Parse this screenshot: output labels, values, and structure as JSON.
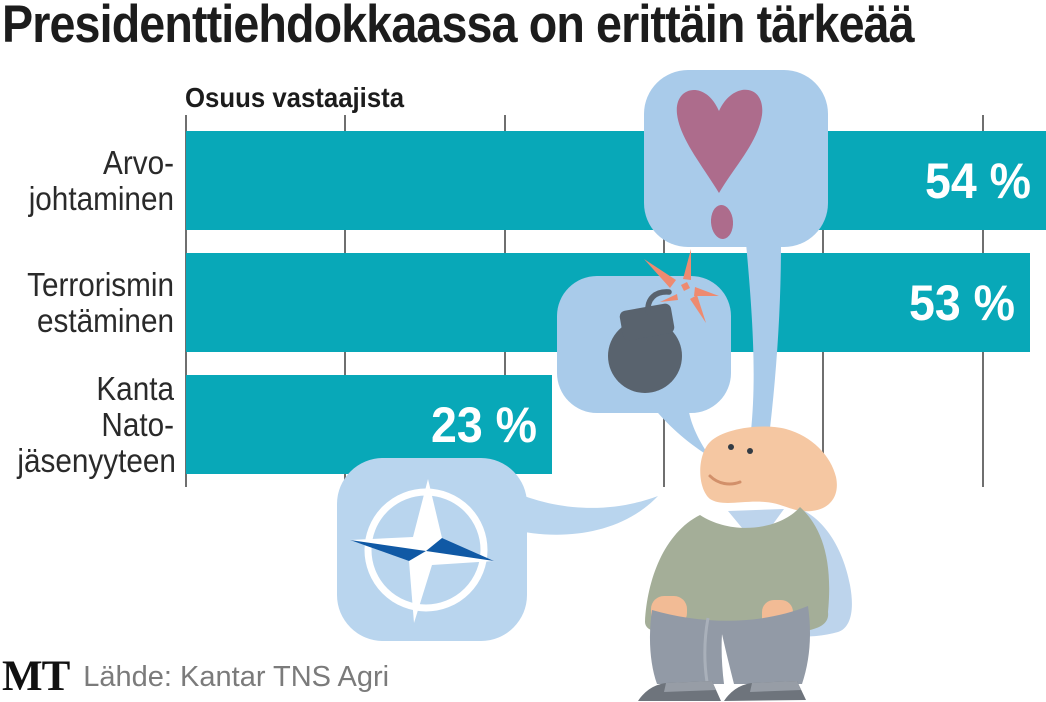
{
  "title": "Presidenttiehdokkaassa on erittäin tärkeää",
  "chart_data": {
    "type": "bar",
    "orientation": "horizontal",
    "title": "Presidenttiehdokkaassa on erittäin tärkeää",
    "axis_label": "Osuus vastaajista",
    "unit": "%",
    "xlim": [
      0,
      60
    ],
    "gridline_ticks_percent": [
      0,
      10,
      20,
      30,
      40,
      50
    ],
    "grid": true,
    "value_labels_inside_bar": true,
    "rows": [
      {
        "label_lines": [
          "Arvo-",
          "johtaminen"
        ],
        "category": "Arvojohtaminen",
        "value": 54,
        "value_label": "54 %"
      },
      {
        "label_lines": [
          "Terrorismin",
          "estäminen"
        ],
        "category": "Terrorismin estäminen",
        "value": 53,
        "value_label": "53 %"
      },
      {
        "label_lines": [
          "Kanta",
          "Nato-",
          "jäsenyyteen"
        ],
        "category": "Kanta Nato-jäsenyyteen",
        "value": 23,
        "value_label": "23 %"
      }
    ]
  },
  "illustration": {
    "icons": [
      "heart-exclamation-icon",
      "bomb-icon",
      "spark-icon",
      "nato-compass-icon",
      "man-illustration"
    ]
  },
  "footer": {
    "logo": "MT",
    "source": "Lähde: Kantar TNS Agri"
  },
  "colors": {
    "teal": "#08a8b8",
    "bubble": "#a9cbea",
    "bubble_light": "#b9d5ee",
    "heart": "#ad6c8c",
    "bomb": "#59636e",
    "spark": "#ee8a70",
    "nato": "#1059a5",
    "skin": "#f5c7a2",
    "hand": "#f2bb95",
    "shirt": "#bdd4ec",
    "vest": "#a4ae98",
    "pants": "#929aa6",
    "pants_line": "#a9b0ba",
    "shoe": "#6e747c",
    "shoe_light": "#979da6",
    "grid": "#6f6f6f",
    "ink": "#1c1c1c",
    "label_ink": "#2a2a2a",
    "source_gray": "#7b7b7b"
  }
}
